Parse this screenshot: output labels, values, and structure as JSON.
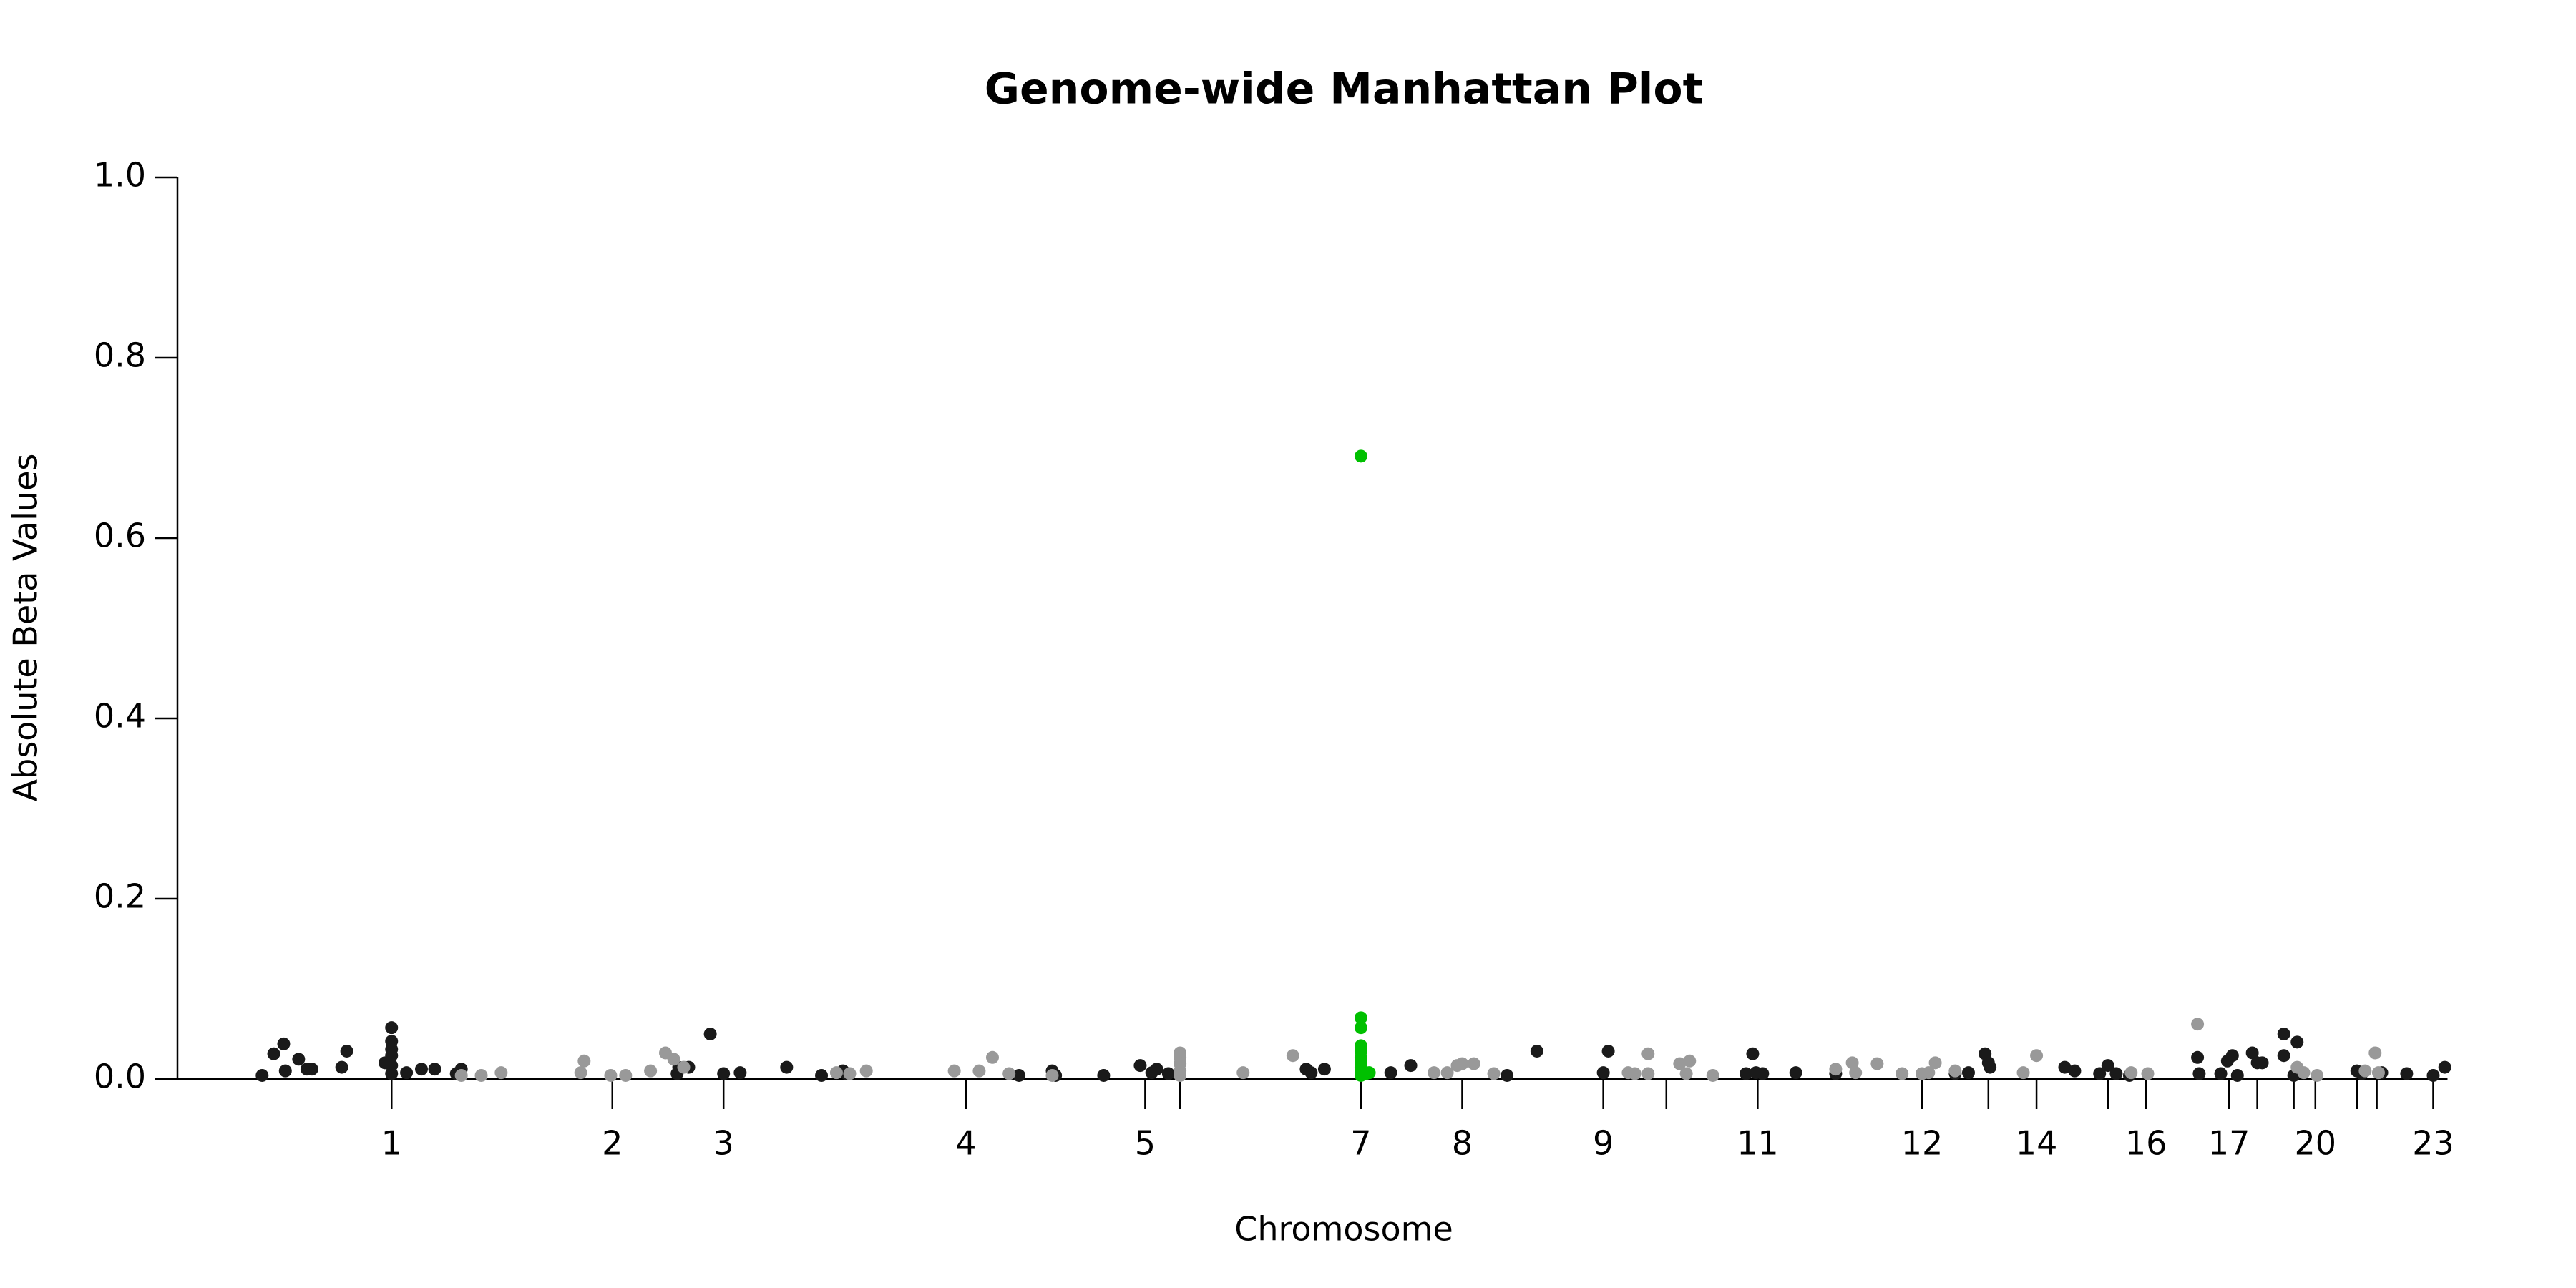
{
  "chart_data": {
    "type": "scatter",
    "title": "Genome-wide Manhattan Plot",
    "x_label": "Chromosome",
    "y_label": "Absolute Beta Values",
    "xlim": [
      0,
      1370
    ],
    "ylim": [
      0,
      1
    ],
    "yticks": [
      {
        "value": 0,
        "label": "0.0"
      },
      0.2,
      0.4,
      0.6,
      0.8,
      {
        "value": 1,
        "label": "1.0"
      }
    ],
    "xticks": [
      {
        "value": 129,
        "label": "1"
      },
      {
        "value": 262,
        "label": "2"
      },
      {
        "value": 329,
        "label": "3"
      },
      {
        "value": 475,
        "label": "4"
      },
      {
        "value": 583,
        "label": "5"
      },
      {
        "value": 604,
        "label": null
      },
      {
        "value": 713,
        "label": "7"
      },
      {
        "value": 774,
        "label": "8"
      },
      {
        "value": 859,
        "label": "9"
      },
      {
        "value": 897,
        "label": null
      },
      {
        "value": 952,
        "label": "11"
      },
      {
        "value": 1051,
        "label": "12"
      },
      {
        "value": 1091,
        "label": null
      },
      {
        "value": 1120,
        "label": "14"
      },
      {
        "value": 1163,
        "label": null
      },
      {
        "value": 1186,
        "label": "16"
      },
      {
        "value": 1236,
        "label": "17"
      },
      {
        "value": 1253,
        "label": null
      },
      {
        "value": 1275,
        "label": null
      },
      {
        "value": 1288,
        "label": "20"
      },
      {
        "value": 1313,
        "label": null
      },
      {
        "value": 1325,
        "label": null
      },
      {
        "value": 1359,
        "label": "23"
      }
    ],
    "series": [
      {
        "color": "#1a1a1a",
        "x": [
          51,
          58,
          64,
          65,
          73,
          78,
          81,
          99,
          102,
          125,
          129,
          129,
          129,
          129,
          129,
          129,
          138,
          147,
          155,
          168,
          171,
          302,
          308,
          301,
          321,
          329,
          339,
          367,
          388,
          401,
          403,
          507,
          527,
          529,
          558,
          580,
          587,
          590,
          597,
          680,
          683,
          691,
          731,
          743,
          801,
          819,
          859,
          862,
          945,
          949,
          951,
          955,
          975,
          999,
          1071,
          1079,
          1089,
          1091,
          1092,
          1137,
          1143,
          1158,
          1163,
          1168,
          1176,
          1217,
          1218,
          1231,
          1235,
          1238,
          1241,
          1250,
          1253,
          1256,
          1269,
          1269,
          1277,
          1275,
          1313,
          1316,
          1328,
          1343,
          1359,
          1366
        ],
        "values": [
          0.004,
          0.028,
          0.039,
          0.009,
          0.022,
          0.011,
          0.011,
          0.013,
          0.031,
          0.018,
          0.057,
          0.042,
          0.033,
          0.026,
          0.015,
          0.006,
          0.007,
          0.011,
          0.011,
          0.006,
          0.011,
          0.013,
          0.013,
          0.006,
          0.05,
          0.006,
          0.007,
          0.013,
          0.004,
          0.009,
          0.006,
          0.004,
          0.009,
          0.004,
          0.004,
          0.015,
          0.007,
          0.011,
          0.006,
          0.011,
          0.007,
          0.011,
          0.007,
          0.015,
          0.004,
          0.031,
          0.007,
          0.031,
          0.006,
          0.028,
          0.007,
          0.006,
          0.007,
          0.006,
          0.006,
          0.007,
          0.028,
          0.018,
          0.013,
          0.013,
          0.009,
          0.006,
          0.015,
          0.006,
          0.004,
          0.024,
          0.006,
          0.006,
          0.02,
          0.026,
          0.004,
          0.029,
          0.018,
          0.018,
          0.05,
          0.026,
          0.041,
          0.004,
          0.009,
          0.006,
          0.007,
          0.006,
          0.004,
          0.013
        ]
      },
      {
        "color": "#999999",
        "x": [
          171,
          183,
          195,
          243,
          245,
          261,
          270,
          285,
          294,
          299,
          305,
          397,
          405,
          415,
          468,
          483,
          491,
          501,
          527,
          604,
          604,
          604,
          604,
          604,
          642,
          672,
          757,
          765,
          771,
          774,
          781,
          793,
          874,
          878,
          886,
          886,
          905,
          911,
          909,
          925,
          999,
          1009,
          1011,
          1024,
          1039,
          1051,
          1055,
          1059,
          1071,
          1112,
          1120,
          1177,
          1187,
          1217,
          1277,
          1281,
          1289,
          1318,
          1324,
          1326
        ],
        "values": [
          0.004,
          0.004,
          0.007,
          0.007,
          0.02,
          0.004,
          0.004,
          0.009,
          0.029,
          0.022,
          0.013,
          0.007,
          0.006,
          0.009,
          0.009,
          0.009,
          0.024,
          0.006,
          0.004,
          0.029,
          0.024,
          0.017,
          0.009,
          0.004,
          0.007,
          0.026,
          0.007,
          0.007,
          0.015,
          0.017,
          0.017,
          0.006,
          0.007,
          0.006,
          0.028,
          0.006,
          0.017,
          0.02,
          0.006,
          0.004,
          0.011,
          0.018,
          0.007,
          0.017,
          0.006,
          0.006,
          0.007,
          0.018,
          0.009,
          0.007,
          0.026,
          0.007,
          0.006,
          0.061,
          0.013,
          0.007,
          0.004,
          0.009,
          0.029,
          0.007
        ]
      },
      {
        "color": "#00c000",
        "x": [
          713,
          713,
          713,
          713,
          713,
          713,
          713,
          713,
          713,
          713,
          716,
          718
        ],
        "values": [
          0.691,
          0.068,
          0.057,
          0.037,
          0.031,
          0.024,
          0.018,
          0.013,
          0.007,
          0.004,
          0.006,
          0.007
        ]
      }
    ]
  }
}
